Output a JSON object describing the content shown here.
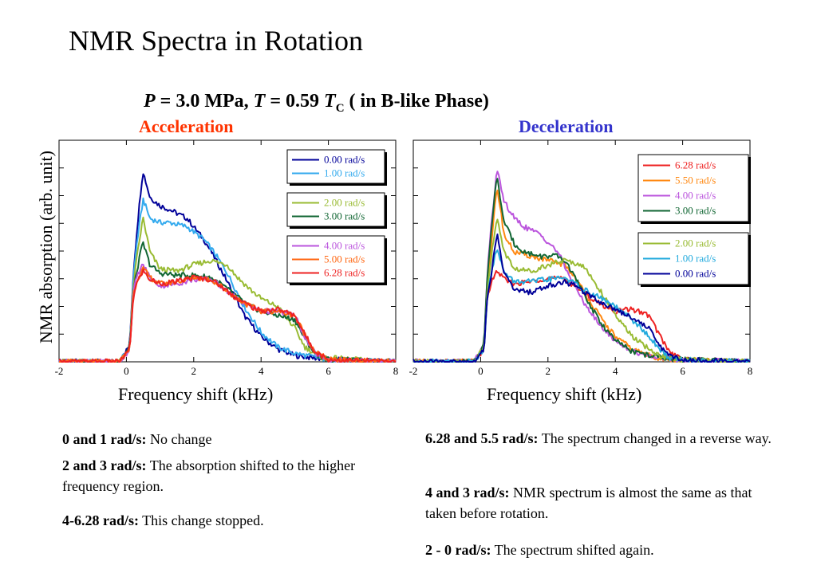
{
  "title": "NMR Spectra in Rotation",
  "conditions": {
    "p_sym": "P",
    "p_val": " = 3.0 MPa, ",
    "t_sym": "T",
    "t_val": " = 0.59 ",
    "tc_sym": "T",
    "tc_sub": "C",
    "phase": " ( in B-like Phase)"
  },
  "ylabel": "NMR absorption (arb. unit)",
  "chart_data": [
    {
      "type": "line",
      "title": "Acceleration",
      "title_color": "#ff3300",
      "xlabel": "Frequency shift (kHz)",
      "xlim": [
        -2,
        8
      ],
      "xticks": [
        -2,
        0,
        2,
        4,
        6,
        8
      ],
      "ylim": [
        0,
        1.05
      ],
      "grid": false,
      "legend_groups": [
        [
          0,
          1
        ],
        [
          2,
          3
        ],
        [
          4,
          5,
          6
        ]
      ],
      "legend_placement": "top-right",
      "series": [
        {
          "name": "0.00 rad/s",
          "color": "#000099",
          "x": [
            -2,
            -0.2,
            0.1,
            0.2,
            0.3,
            0.45,
            0.5,
            0.7,
            1.0,
            1.3,
            1.8,
            2.3,
            2.6,
            3.0,
            3.5,
            4.0,
            4.5,
            5.0,
            6.0,
            8
          ],
          "y": [
            0,
            0,
            0.08,
            0.4,
            0.6,
            0.85,
            0.9,
            0.78,
            0.74,
            0.72,
            0.68,
            0.58,
            0.5,
            0.38,
            0.22,
            0.12,
            0.06,
            0.03,
            0.01,
            0
          ]
        },
        {
          "name": "1.00 rad/s",
          "color": "#33aaee",
          "x": [
            -2,
            -0.2,
            0.1,
            0.2,
            0.3,
            0.45,
            0.5,
            0.7,
            1.0,
            1.3,
            1.8,
            2.3,
            2.6,
            3.0,
            3.5,
            4.0,
            4.5,
            5.0,
            6.0,
            8
          ],
          "y": [
            0,
            0,
            0.07,
            0.38,
            0.55,
            0.72,
            0.77,
            0.68,
            0.66,
            0.66,
            0.64,
            0.58,
            0.52,
            0.42,
            0.26,
            0.14,
            0.07,
            0.04,
            0.01,
            0
          ]
        },
        {
          "name": "2.00 rad/s",
          "color": "#99bb33",
          "x": [
            -2,
            -0.2,
            0.1,
            0.2,
            0.3,
            0.45,
            0.5,
            0.7,
            1.0,
            1.5,
            2.0,
            2.5,
            3.0,
            3.3,
            3.7,
            4.0,
            4.5,
            5.0,
            5.3,
            5.8,
            8
          ],
          "y": [
            0,
            0,
            0.07,
            0.35,
            0.48,
            0.64,
            0.68,
            0.52,
            0.44,
            0.43,
            0.46,
            0.48,
            0.46,
            0.4,
            0.34,
            0.3,
            0.26,
            0.16,
            0.07,
            0.02,
            0
          ]
        },
        {
          "name": "3.00 rad/s",
          "color": "#116633",
          "x": [
            -2,
            -0.2,
            0.1,
            0.2,
            0.3,
            0.45,
            0.5,
            0.7,
            1.0,
            1.5,
            2.0,
            2.5,
            2.8,
            3.2,
            3.6,
            4.0,
            4.5,
            5.0,
            5.3,
            5.6,
            6.0,
            8
          ],
          "y": [
            0,
            0,
            0.07,
            0.32,
            0.42,
            0.54,
            0.56,
            0.46,
            0.42,
            0.41,
            0.41,
            0.4,
            0.37,
            0.32,
            0.27,
            0.24,
            0.22,
            0.2,
            0.11,
            0.04,
            0.01,
            0
          ]
        },
        {
          "name": "4.00 rad/s",
          "color": "#bb55dd",
          "x": [
            -2,
            -0.2,
            0.1,
            0.2,
            0.3,
            0.45,
            0.5,
            0.7,
            1.0,
            1.5,
            2.0,
            2.5,
            2.8,
            3.2,
            3.6,
            4.0,
            4.5,
            5.0,
            5.3,
            5.6,
            6.0,
            8
          ],
          "y": [
            0,
            0,
            0.06,
            0.32,
            0.4,
            0.45,
            0.46,
            0.4,
            0.36,
            0.37,
            0.39,
            0.39,
            0.36,
            0.31,
            0.27,
            0.24,
            0.24,
            0.22,
            0.12,
            0.04,
            0.01,
            0
          ]
        },
        {
          "name": "5.00 rad/s",
          "color": "#ff6611",
          "x": [
            -2,
            -0.2,
            0.1,
            0.2,
            0.3,
            0.45,
            0.5,
            0.7,
            1.0,
            1.5,
            2.0,
            2.5,
            2.8,
            3.2,
            3.6,
            4.0,
            4.5,
            5.0,
            5.3,
            5.6,
            6.0,
            8
          ],
          "y": [
            0,
            0,
            0.06,
            0.31,
            0.38,
            0.43,
            0.44,
            0.4,
            0.37,
            0.38,
            0.4,
            0.39,
            0.36,
            0.31,
            0.27,
            0.24,
            0.24,
            0.22,
            0.13,
            0.05,
            0.01,
            0
          ]
        },
        {
          "name": "6.28 rad/s",
          "color": "#ee2222",
          "x": [
            -2,
            -0.2,
            0.1,
            0.2,
            0.3,
            0.45,
            0.5,
            0.7,
            1.0,
            1.5,
            2.0,
            2.5,
            2.8,
            3.2,
            3.6,
            4.0,
            4.5,
            5.0,
            5.3,
            5.6,
            6.0,
            8
          ],
          "y": [
            0,
            0,
            0.06,
            0.3,
            0.37,
            0.42,
            0.43,
            0.39,
            0.37,
            0.38,
            0.4,
            0.39,
            0.36,
            0.31,
            0.27,
            0.24,
            0.25,
            0.22,
            0.13,
            0.05,
            0.01,
            0
          ]
        }
      ]
    },
    {
      "type": "line",
      "title": "Deceleration",
      "title_color": "#3333cc",
      "xlabel": "Frequency shift (kHz)",
      "xlim": [
        -2,
        8
      ],
      "xticks": [
        -2,
        0,
        2,
        4,
        6,
        8
      ],
      "ylim": [
        0,
        1.05
      ],
      "grid": false,
      "legend_groups": [
        [
          0,
          1,
          2,
          3
        ],
        [
          4,
          5,
          6
        ]
      ],
      "legend_placement": "top-right",
      "series": [
        {
          "name": "6.28 rad/s",
          "color": "#ee2222",
          "x": [
            -2,
            -0.2,
            0.1,
            0.2,
            0.3,
            0.45,
            0.5,
            0.7,
            1.0,
            1.5,
            2.0,
            2.5,
            2.8,
            3.2,
            3.6,
            4.0,
            4.5,
            5.0,
            5.3,
            5.6,
            6.0,
            8
          ],
          "y": [
            0,
            0,
            0.06,
            0.3,
            0.37,
            0.42,
            0.43,
            0.39,
            0.37,
            0.38,
            0.4,
            0.39,
            0.36,
            0.31,
            0.27,
            0.24,
            0.25,
            0.22,
            0.13,
            0.05,
            0.01,
            0
          ]
        },
        {
          "name": "5.50 rad/s",
          "color": "#ff8811",
          "x": [
            -2,
            -0.2,
            0.1,
            0.2,
            0.3,
            0.45,
            0.5,
            0.7,
            1.0,
            1.5,
            2.0,
            2.5,
            2.8,
            3.2,
            3.6,
            4.0,
            4.5,
            5.0,
            5.5,
            8
          ],
          "y": [
            0,
            0,
            0.07,
            0.36,
            0.52,
            0.78,
            0.82,
            0.6,
            0.52,
            0.5,
            0.48,
            0.46,
            0.4,
            0.3,
            0.2,
            0.12,
            0.06,
            0.03,
            0.01,
            0
          ]
        },
        {
          "name": "4.00 rad/s",
          "color": "#bb55dd",
          "x": [
            -2,
            -0.2,
            0.1,
            0.2,
            0.3,
            0.45,
            0.5,
            0.7,
            1.0,
            1.3,
            1.8,
            2.3,
            2.6,
            3.0,
            3.5,
            4.0,
            4.5,
            5.0,
            6.0,
            8
          ],
          "y": [
            0,
            0,
            0.08,
            0.42,
            0.62,
            0.86,
            0.9,
            0.76,
            0.68,
            0.64,
            0.6,
            0.52,
            0.42,
            0.3,
            0.18,
            0.1,
            0.05,
            0.03,
            0.01,
            0
          ]
        },
        {
          "name": "3.00 rad/s",
          "color": "#116633",
          "x": [
            -2,
            -0.2,
            0.1,
            0.2,
            0.3,
            0.45,
            0.5,
            0.7,
            1.0,
            1.3,
            1.8,
            2.3,
            2.6,
            3.0,
            3.5,
            4.0,
            4.5,
            5.0,
            6.0,
            8
          ],
          "y": [
            0,
            0,
            0.08,
            0.4,
            0.6,
            0.84,
            0.86,
            0.66,
            0.56,
            0.52,
            0.5,
            0.5,
            0.46,
            0.34,
            0.2,
            0.1,
            0.05,
            0.03,
            0.01,
            0
          ]
        },
        {
          "name": "2.00 rad/s",
          "color": "#99bb33",
          "x": [
            -2,
            -0.2,
            0.1,
            0.2,
            0.3,
            0.45,
            0.5,
            0.7,
            1.0,
            1.5,
            2.0,
            2.5,
            3.0,
            3.3,
            3.7,
            4.0,
            4.5,
            5.0,
            5.3,
            5.8,
            8
          ],
          "y": [
            0,
            0,
            0.07,
            0.35,
            0.48,
            0.64,
            0.68,
            0.52,
            0.44,
            0.43,
            0.46,
            0.48,
            0.46,
            0.4,
            0.3,
            0.22,
            0.12,
            0.06,
            0.03,
            0.01,
            0
          ]
        },
        {
          "name": "1.00 rad/s",
          "color": "#22aadd",
          "x": [
            -2,
            -0.2,
            0.1,
            0.2,
            0.3,
            0.45,
            0.5,
            0.7,
            1.0,
            1.5,
            2.0,
            2.5,
            2.8,
            3.2,
            3.6,
            4.0,
            4.5,
            5.0,
            5.3,
            5.6,
            6.0,
            8
          ],
          "y": [
            0,
            0,
            0.06,
            0.32,
            0.4,
            0.52,
            0.54,
            0.42,
            0.38,
            0.38,
            0.39,
            0.4,
            0.37,
            0.33,
            0.3,
            0.26,
            0.2,
            0.12,
            0.06,
            0.02,
            0.01,
            0
          ]
        },
        {
          "name": "0.00 rad/s",
          "color": "#000099",
          "x": [
            -2,
            -0.2,
            0.1,
            0.2,
            0.3,
            0.45,
            0.5,
            0.7,
            1.0,
            1.5,
            2.0,
            2.5,
            2.8,
            3.2,
            3.6,
            4.0,
            4.5,
            5.0,
            5.3,
            5.6,
            6.0,
            8
          ],
          "y": [
            0,
            0,
            0.06,
            0.32,
            0.4,
            0.56,
            0.6,
            0.42,
            0.34,
            0.33,
            0.36,
            0.38,
            0.36,
            0.32,
            0.28,
            0.25,
            0.21,
            0.16,
            0.08,
            0.03,
            0.01,
            0
          ]
        }
      ]
    }
  ],
  "notes_left": [
    {
      "bold": "0 and 1 rad/s:",
      "text": " No change"
    },
    {
      "bold": "2 and 3 rad/s:",
      "text": " The absorption shifted to the higher frequency region."
    },
    {
      "bold": "4-6.28 rad/s:",
      "text": " This change stopped."
    }
  ],
  "notes_right": [
    {
      "bold": "6.28 and 5.5 rad/s:",
      "text": " The spectrum changed in a reverse way."
    },
    {
      "bold": "4 and 3 rad/s:",
      "text": " NMR spectrum is almost the same as that taken before rotation."
    },
    {
      "bold": "2 - 0 rad/s:",
      "text": " The spectrum shifted again."
    }
  ]
}
